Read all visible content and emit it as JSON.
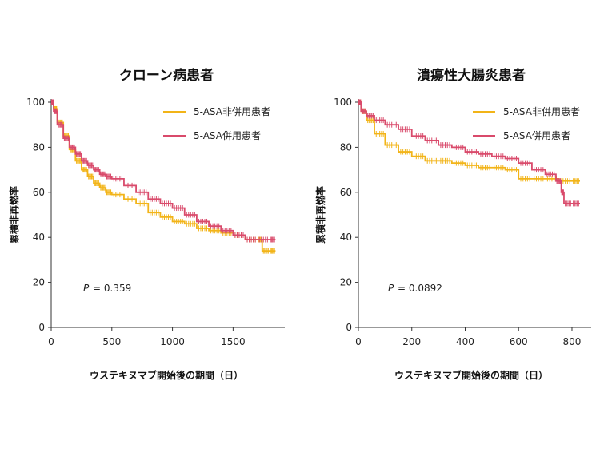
{
  "colors": {
    "non_combined": "#F2B418",
    "combined": "#D94A6B",
    "axis": "#333333"
  },
  "chart_data": [
    {
      "type": "line",
      "title": "クローン病患者",
      "xlabel": "ウステキヌマブ開始後の期間（日）",
      "ylabel": "累積非再燃率",
      "xlim": [
        0,
        1900
      ],
      "ylim": [
        0,
        100
      ],
      "xticks": [
        0,
        500,
        1000,
        1500
      ],
      "yticks": [
        0,
        20,
        40,
        60,
        80,
        100
      ],
      "legend_position": "top-right",
      "p_label": "P",
      "p_text": "=  0.359",
      "series": [
        {
          "name": "5-ASA非併用患者",
          "color": "#F2B418",
          "x": [
            0,
            20,
            50,
            100,
            150,
            200,
            250,
            300,
            350,
            400,
            450,
            500,
            600,
            700,
            800,
            900,
            1000,
            1100,
            1200,
            1300,
            1400,
            1500,
            1600,
            1700,
            1740,
            1800,
            1850
          ],
          "y": [
            100,
            97,
            91,
            85,
            79,
            74,
            70,
            67,
            64,
            62,
            60,
            59,
            57,
            55,
            51,
            49,
            47,
            46,
            44,
            43,
            42,
            41,
            39,
            39,
            34,
            34,
            34
          ]
        },
        {
          "name": "5-ASA併用患者",
          "color": "#D94A6B",
          "x": [
            0,
            20,
            50,
            100,
            150,
            200,
            250,
            300,
            350,
            400,
            450,
            500,
            600,
            700,
            800,
            900,
            1000,
            1100,
            1200,
            1300,
            1400,
            1500,
            1600,
            1700,
            1800,
            1850
          ],
          "y": [
            100,
            96,
            90,
            84,
            80,
            77,
            74,
            72,
            70,
            68,
            67,
            66,
            63,
            60,
            57,
            55,
            53,
            50,
            47,
            45,
            43,
            41,
            39,
            39,
            39,
            39
          ]
        }
      ]
    },
    {
      "type": "line",
      "title": "潰瘍性大腸炎患者",
      "xlabel": "ウステキヌマブ開始後の期間（日）",
      "ylabel": "累積非再燃率",
      "xlim": [
        0,
        860
      ],
      "ylim": [
        0,
        100
      ],
      "xticks": [
        0,
        200,
        400,
        600,
        800
      ],
      "yticks": [
        0,
        20,
        40,
        60,
        80,
        100
      ],
      "legend_position": "top-right",
      "p_label": "P",
      "p_text": "= 0.0892",
      "series": [
        {
          "name": "5-ASA非併用患者",
          "color": "#F2B418",
          "x": [
            0,
            10,
            30,
            60,
            100,
            150,
            200,
            250,
            300,
            350,
            400,
            450,
            500,
            550,
            600,
            650,
            700,
            750,
            800,
            830
          ],
          "y": [
            100,
            96,
            92,
            86,
            81,
            78,
            76,
            74,
            74,
            73,
            72,
            71,
            71,
            70,
            66,
            66,
            66,
            65,
            65,
            65
          ]
        },
        {
          "name": "5-ASA併用患者",
          "color": "#D94A6B",
          "x": [
            0,
            10,
            30,
            60,
            100,
            150,
            200,
            250,
            300,
            350,
            400,
            450,
            500,
            550,
            600,
            650,
            700,
            740,
            760,
            770,
            800,
            830
          ],
          "y": [
            100,
            96,
            94,
            92,
            90,
            88,
            85,
            83,
            81,
            80,
            78,
            77,
            76,
            75,
            73,
            70,
            68,
            65,
            60,
            55,
            55,
            55
          ]
        }
      ]
    }
  ]
}
